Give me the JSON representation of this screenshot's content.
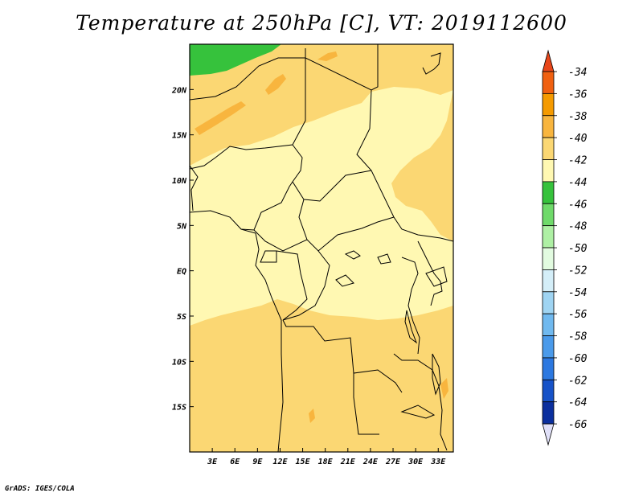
{
  "title": "Temperature at 250hPa [C], VT: 2019112600",
  "credit": "GrADS: IGES/COLA",
  "map": {
    "lon_range": [
      0,
      35
    ],
    "lat_range": [
      -20,
      25
    ],
    "lat_ticks": [
      {
        "lat": 20,
        "label": "20N"
      },
      {
        "lat": 15,
        "label": "15N"
      },
      {
        "lat": 10,
        "label": "10N"
      },
      {
        "lat": 5,
        "label": "5N"
      },
      {
        "lat": 0,
        "label": "EQ"
      },
      {
        "lat": -5,
        "label": "5S"
      },
      {
        "lat": -10,
        "label": "10S"
      },
      {
        "lat": -15,
        "label": "15S"
      }
    ],
    "lon_ticks": [
      {
        "lon": 3,
        "label": "3E"
      },
      {
        "lon": 6,
        "label": "6E"
      },
      {
        "lon": 9,
        "label": "9E"
      },
      {
        "lon": 12,
        "label": "12E"
      },
      {
        "lon": 15,
        "label": "15E"
      },
      {
        "lon": 18,
        "label": "18E"
      },
      {
        "lon": 21,
        "label": "21E"
      },
      {
        "lon": 24,
        "label": "24E"
      },
      {
        "lon": 27,
        "label": "27E"
      },
      {
        "lon": 30,
        "label": "30E"
      },
      {
        "lon": 33,
        "label": "33E"
      }
    ]
  },
  "colorbar": {
    "labels": [
      "-34",
      "-36",
      "-38",
      "-40",
      "-42",
      "-44",
      "-46",
      "-48",
      "-50",
      "-52",
      "-54",
      "-56",
      "-58",
      "-60",
      "-62",
      "-64",
      "-66"
    ],
    "top_arrow_color": "#e8461a",
    "bottom_arrow_color": "#e0e0f8",
    "colors": [
      "#f06010",
      "#f59a00",
      "#f8b53e",
      "#fbd773",
      "#fff8b2",
      "#36c23c",
      "#6fda6a",
      "#aef0a4",
      "#e2fbe0",
      "#d4eef8",
      "#9fd4f2",
      "#70b9ef",
      "#4a9aea",
      "#2c78e0",
      "#1652c8",
      "#0b2f9e",
      "#071a6c"
    ]
  },
  "fields": {
    "colors": {
      "c42": "#fff8b2",
      "c40": "#fbd773",
      "c38": "#f8b53e",
      "c44": "#36c23c"
    }
  }
}
